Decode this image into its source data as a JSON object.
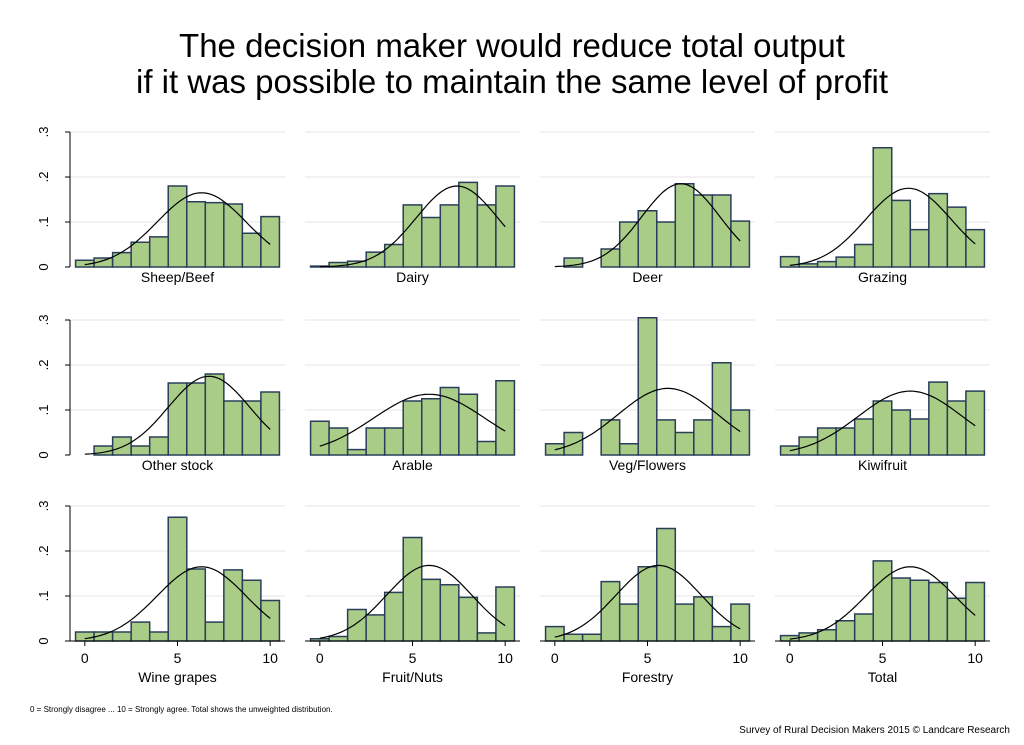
{
  "title": {
    "line1": "The decision maker would reduce total output",
    "line2": "if it was possible to maintain the same level of profit"
  },
  "footnote": "0 = Strongly disagree ... 10 = Strongly agree. Total shows the unweighted distribution.",
  "credit": "Survey of Rural Decision Makers 2015 © Landcare Research",
  "colors": {
    "bar_fill": "#a9cc86",
    "bar_stroke": "#2a3e5a",
    "curve": "#000000",
    "grid": "#e6e6e6",
    "axis": "#000000"
  },
  "chart_data": [
    {
      "type": "bar",
      "panel": "Sheep/Beef",
      "x": [
        0,
        1,
        2,
        3,
        4,
        5,
        6,
        7,
        8,
        9,
        10
      ],
      "values": [
        0.015,
        0.02,
        0.032,
        0.055,
        0.067,
        0.18,
        0.145,
        0.143,
        0.14,
        0.075,
        0.112
      ],
      "normal_curve": {
        "mean": 6.3,
        "sd": 2.4,
        "peak": 0.165
      },
      "ylim": [
        0,
        0.3
      ],
      "xlim": [
        -0.8,
        10.8
      ]
    },
    {
      "type": "bar",
      "panel": "Dairy",
      "x": [
        0,
        1,
        2,
        3,
        4,
        5,
        6,
        7,
        8,
        9,
        10
      ],
      "values": [
        0.002,
        0.01,
        0.013,
        0.033,
        0.05,
        0.138,
        0.11,
        0.138,
        0.188,
        0.138,
        0.18
      ],
      "normal_curve": {
        "mean": 7.4,
        "sd": 2.2,
        "peak": 0.18
      },
      "ylim": [
        0,
        0.3
      ],
      "xlim": [
        -0.8,
        10.8
      ]
    },
    {
      "type": "bar",
      "panel": "Deer",
      "x": [
        0,
        1,
        2,
        3,
        4,
        5,
        6,
        7,
        8,
        9,
        10
      ],
      "values": [
        0.0,
        0.02,
        0.0,
        0.04,
        0.1,
        0.125,
        0.1,
        0.185,
        0.16,
        0.16,
        0.102
      ],
      "normal_curve": {
        "mean": 6.8,
        "sd": 2.1,
        "peak": 0.185
      },
      "ylim": [
        0,
        0.3
      ],
      "xlim": [
        -0.8,
        10.8
      ]
    },
    {
      "type": "bar",
      "panel": "Grazing",
      "x": [
        0,
        1,
        2,
        3,
        4,
        5,
        6,
        7,
        8,
        9,
        10
      ],
      "values": [
        0.023,
        0.007,
        0.012,
        0.022,
        0.05,
        0.265,
        0.148,
        0.083,
        0.163,
        0.133,
        0.083
      ],
      "normal_curve": {
        "mean": 6.4,
        "sd": 2.3,
        "peak": 0.175
      },
      "ylim": [
        0,
        0.3
      ],
      "xlim": [
        -0.8,
        10.8
      ]
    },
    {
      "type": "bar",
      "panel": "Other stock",
      "x": [
        0,
        1,
        2,
        3,
        4,
        5,
        6,
        7,
        8,
        9,
        10
      ],
      "values": [
        0.0,
        0.02,
        0.04,
        0.02,
        0.04,
        0.16,
        0.16,
        0.18,
        0.12,
        0.12,
        0.14
      ],
      "normal_curve": {
        "mean": 6.7,
        "sd": 2.2,
        "peak": 0.175
      },
      "ylim": [
        0,
        0.3
      ],
      "xlim": [
        -0.8,
        10.8
      ]
    },
    {
      "type": "bar",
      "panel": "Arable",
      "x": [
        0,
        1,
        2,
        3,
        4,
        5,
        6,
        7,
        8,
        9,
        10
      ],
      "values": [
        0.075,
        0.06,
        0.012,
        0.06,
        0.06,
        0.12,
        0.125,
        0.15,
        0.135,
        0.03,
        0.165
      ],
      "normal_curve": {
        "mean": 5.9,
        "sd": 3.0,
        "peak": 0.135
      },
      "ylim": [
        0,
        0.3
      ],
      "xlim": [
        -0.8,
        10.8
      ]
    },
    {
      "type": "bar",
      "panel": "Veg/Flowers",
      "x": [
        0,
        1,
        2,
        3,
        4,
        5,
        6,
        7,
        8,
        9,
        10
      ],
      "values": [
        0.025,
        0.05,
        0.0,
        0.078,
        0.025,
        0.305,
        0.078,
        0.05,
        0.078,
        0.205,
        0.1
      ],
      "normal_curve": {
        "mean": 6.1,
        "sd": 2.7,
        "peak": 0.148
      },
      "ylim": [
        0,
        0.3
      ],
      "xlim": [
        -0.8,
        10.8
      ]
    },
    {
      "type": "bar",
      "panel": "Kiwifruit",
      "x": [
        0,
        1,
        2,
        3,
        4,
        5,
        6,
        7,
        8,
        9,
        10
      ],
      "values": [
        0.02,
        0.04,
        0.06,
        0.06,
        0.08,
        0.12,
        0.1,
        0.08,
        0.162,
        0.12,
        0.142
      ],
      "normal_curve": {
        "mean": 6.5,
        "sd": 2.8,
        "peak": 0.142
      },
      "ylim": [
        0,
        0.3
      ],
      "xlim": [
        -0.8,
        10.8
      ]
    },
    {
      "type": "bar",
      "panel": "Wine grapes",
      "x": [
        0,
        1,
        2,
        3,
        4,
        5,
        6,
        7,
        8,
        9,
        10
      ],
      "values": [
        0.02,
        0.02,
        0.02,
        0.042,
        0.02,
        0.275,
        0.16,
        0.042,
        0.158,
        0.135,
        0.09
      ],
      "normal_curve": {
        "mean": 6.3,
        "sd": 2.4,
        "peak": 0.165
      },
      "ylim": [
        0,
        0.3
      ],
      "xlim": [
        -0.8,
        10.8
      ]
    },
    {
      "type": "bar",
      "panel": "Fruit/Nuts",
      "x": [
        0,
        1,
        2,
        3,
        4,
        5,
        6,
        7,
        8,
        9,
        10
      ],
      "values": [
        0.005,
        0.01,
        0.07,
        0.058,
        0.108,
        0.23,
        0.137,
        0.125,
        0.097,
        0.018,
        0.12
      ],
      "normal_curve": {
        "mean": 5.9,
        "sd": 2.3,
        "peak": 0.168
      },
      "ylim": [
        0,
        0.3
      ],
      "xlim": [
        -0.8,
        10.8
      ]
    },
    {
      "type": "bar",
      "panel": "Forestry",
      "x": [
        0,
        1,
        2,
        3,
        4,
        5,
        6,
        7,
        8,
        9,
        10
      ],
      "values": [
        0.032,
        0.015,
        0.015,
        0.132,
        0.082,
        0.165,
        0.25,
        0.082,
        0.098,
        0.032,
        0.082
      ],
      "normal_curve": {
        "mean": 5.6,
        "sd": 2.3,
        "peak": 0.168
      },
      "ylim": [
        0,
        0.3
      ],
      "xlim": [
        -0.8,
        10.8
      ]
    },
    {
      "type": "bar",
      "panel": "Total",
      "x": [
        0,
        1,
        2,
        3,
        4,
        5,
        6,
        7,
        8,
        9,
        10
      ],
      "values": [
        0.012,
        0.018,
        0.025,
        0.045,
        0.06,
        0.178,
        0.14,
        0.135,
        0.13,
        0.095,
        0.13
      ],
      "normal_curve": {
        "mean": 6.5,
        "sd": 2.4,
        "peak": 0.165
      },
      "ylim": [
        0,
        0.3
      ],
      "xlim": [
        -0.8,
        10.8
      ]
    }
  ],
  "axes": {
    "y_ticks": [
      0,
      0.1,
      0.2,
      0.3
    ],
    "y_tick_labels": [
      "0",
      ".1",
      ".2",
      ".3"
    ],
    "x_ticks": [
      0,
      5,
      10
    ],
    "x_tick_labels": [
      "0",
      "5",
      "10"
    ]
  }
}
